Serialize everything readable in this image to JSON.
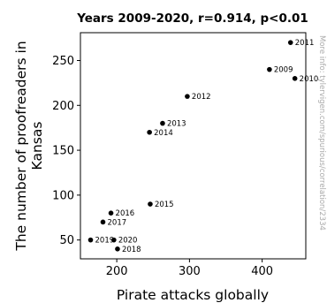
{
  "chart_data": {
    "type": "scatter",
    "title": "Years 2009-2020, r=0.914, p<0.01",
    "xlabel": "Pirate attacks globally",
    "ylabel_lines": [
      "The number of proofreaders in",
      "Kansas"
    ],
    "watermark": "More info: tylervigen.com/spurious/correlation/2334",
    "xlim": [
      150,
      460
    ],
    "ylim": [
      29,
      281
    ],
    "xticks": [
      200,
      300,
      400
    ],
    "yticks": [
      50,
      100,
      150,
      200,
      250
    ],
    "grid": false,
    "point_color": "#000000",
    "points": [
      {
        "label": "2009",
        "x": 410,
        "y": 240
      },
      {
        "label": "2010",
        "x": 445,
        "y": 230
      },
      {
        "label": "2011",
        "x": 439,
        "y": 270
      },
      {
        "label": "2012",
        "x": 297,
        "y": 210
      },
      {
        "label": "2013",
        "x": 263,
        "y": 180
      },
      {
        "label": "2014",
        "x": 245,
        "y": 170
      },
      {
        "label": "2015",
        "x": 246,
        "y": 90
      },
      {
        "label": "2016",
        "x": 192,
        "y": 80
      },
      {
        "label": "2017",
        "x": 181,
        "y": 70
      },
      {
        "label": "2018",
        "x": 201,
        "y": 40
      },
      {
        "label": "2019",
        "x": 164,
        "y": 50
      },
      {
        "label": "2020",
        "x": 196,
        "y": 50
      }
    ]
  }
}
